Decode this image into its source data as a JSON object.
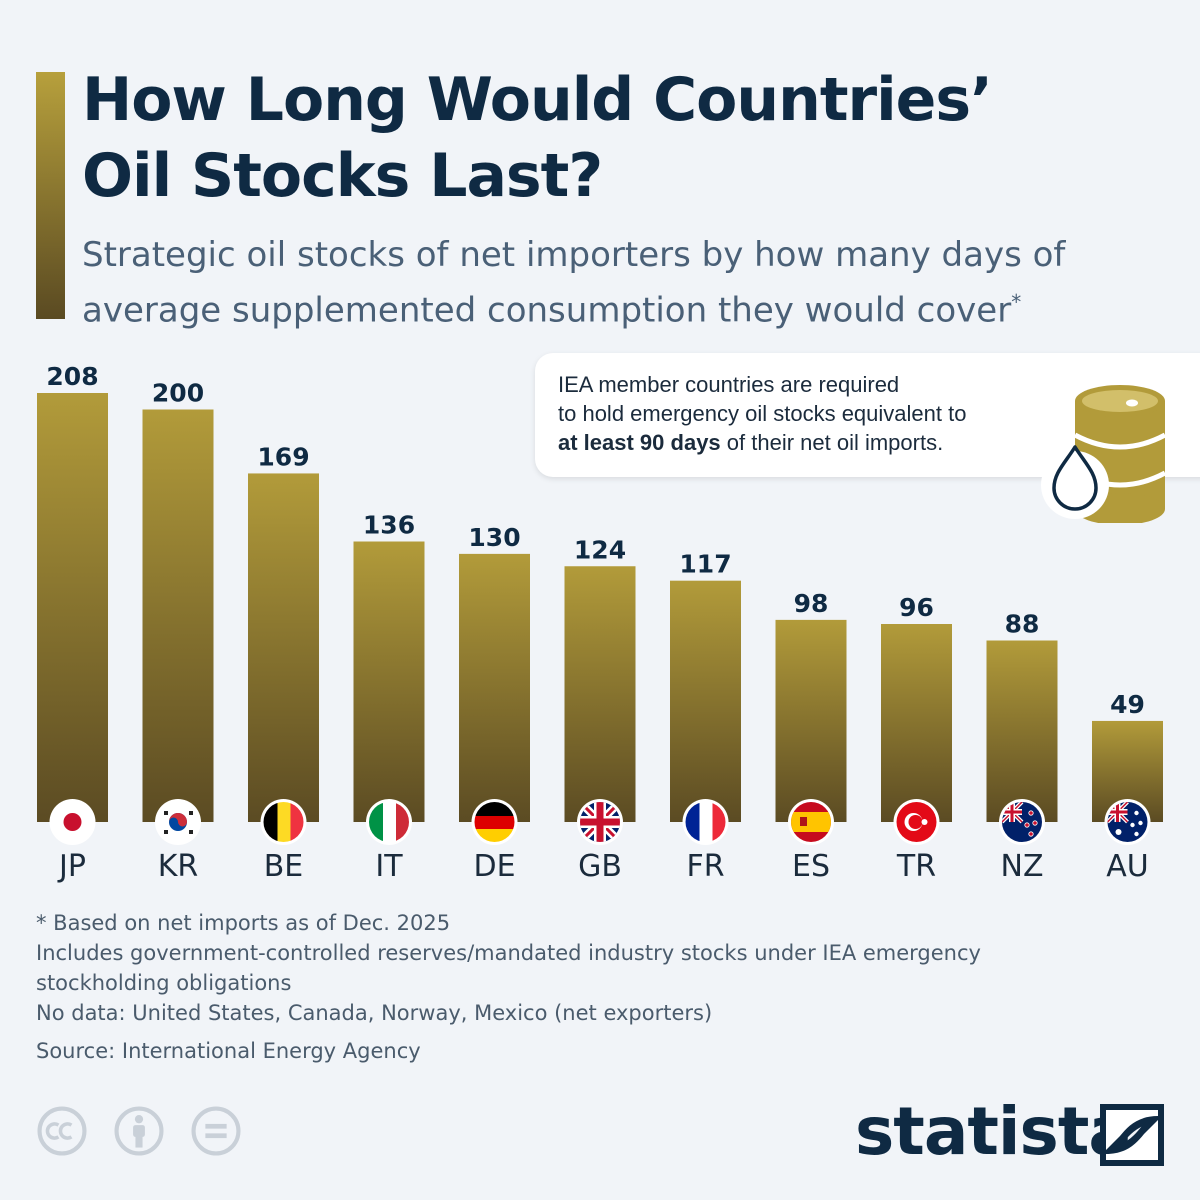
{
  "header": {
    "title_line1": "How Long Would Countries’",
    "title_line2": "Oil Stocks Last?",
    "subtitle_line1": "Strategic oil stocks of net importers by how many days of",
    "subtitle_line2": "average supplemented consumption they would cover",
    "subtitle_mark": "*"
  },
  "callout": {
    "line1": "IEA member countries are required",
    "line2": "to hold emergency oil stocks equivalent to",
    "bold": "at least 90 days",
    "rest": " of their net oil imports.",
    "icon": "oil-barrel-icon"
  },
  "colors": {
    "title": "#0f2a43",
    "bar_top": "#b29b3a",
    "bar_bottom": "#5b4b23",
    "background": "#f1f4f8"
  },
  "chart_data": {
    "type": "bar",
    "categories": [
      "JP",
      "KR",
      "BE",
      "IT",
      "DE",
      "GB",
      "FR",
      "ES",
      "TR",
      "NZ",
      "AU"
    ],
    "values": [
      208,
      200,
      169,
      136,
      130,
      124,
      117,
      98,
      96,
      88,
      49
    ],
    "flags": [
      "japan-flag-icon",
      "south-korea-flag-icon",
      "belgium-flag-icon",
      "italy-flag-icon",
      "germany-flag-icon",
      "uk-flag-icon",
      "france-flag-icon",
      "spain-flag-icon",
      "turkey-flag-icon",
      "new-zealand-flag-icon",
      "australia-flag-icon"
    ],
    "ylim": [
      0,
      208
    ],
    "grid": false
  },
  "footnotes": {
    "note1": "* Based on net imports as of Dec. 2025",
    "note2": "Includes government-controlled reserves/mandated industry stocks under IEA emergency",
    "note3": "stockholding obligations",
    "note4": "No data: United States, Canada, Norway, Mexico (net exporters)",
    "source": "Source: International Energy Agency"
  },
  "branding": {
    "logo": "statista",
    "license_icons": [
      "cc-icon",
      "attribution-icon",
      "no-derivatives-icon"
    ]
  }
}
